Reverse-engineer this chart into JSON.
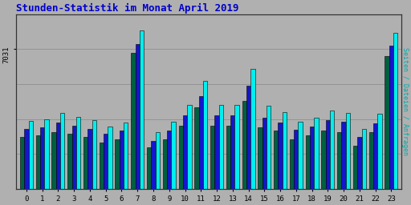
{
  "title": "Stunden-Statistik im Monat April 2019",
  "ylabel_right": "Seiten / Dateien / Anfragen",
  "ytick_label": "7031",
  "background_color": "#b0b0b0",
  "plot_bg_color": "#b0b0b0",
  "title_color": "#0000cc",
  "bar_width": 0.27,
  "hours": [
    0,
    1,
    2,
    3,
    4,
    5,
    6,
    7,
    8,
    9,
    10,
    11,
    12,
    13,
    14,
    15,
    16,
    17,
    18,
    19,
    20,
    21,
    22,
    23
  ],
  "seiten": [
    310,
    320,
    340,
    330,
    310,
    280,
    300,
    820,
    250,
    300,
    380,
    490,
    380,
    380,
    530,
    370,
    350,
    300,
    320,
    350,
    340,
    260,
    340,
    800
  ],
  "dateien": [
    360,
    370,
    400,
    380,
    360,
    330,
    350,
    870,
    290,
    350,
    440,
    560,
    440,
    440,
    620,
    430,
    400,
    355,
    375,
    415,
    405,
    310,
    395,
    860
  ],
  "anfragen": [
    410,
    420,
    455,
    435,
    415,
    375,
    400,
    950,
    340,
    405,
    505,
    650,
    505,
    505,
    720,
    500,
    460,
    405,
    430,
    470,
    455,
    360,
    450,
    940
  ],
  "color_seiten": "#006040",
  "color_dateien": "#1515cc",
  "color_anfragen": "#00eeee",
  "border_color": "#000000",
  "ymax": 1050,
  "ymin": 0,
  "grid_levels": [
    210,
    420,
    630,
    840
  ],
  "ylabel_color": "#00aaaa",
  "ylabel_fontsize": 6.0
}
